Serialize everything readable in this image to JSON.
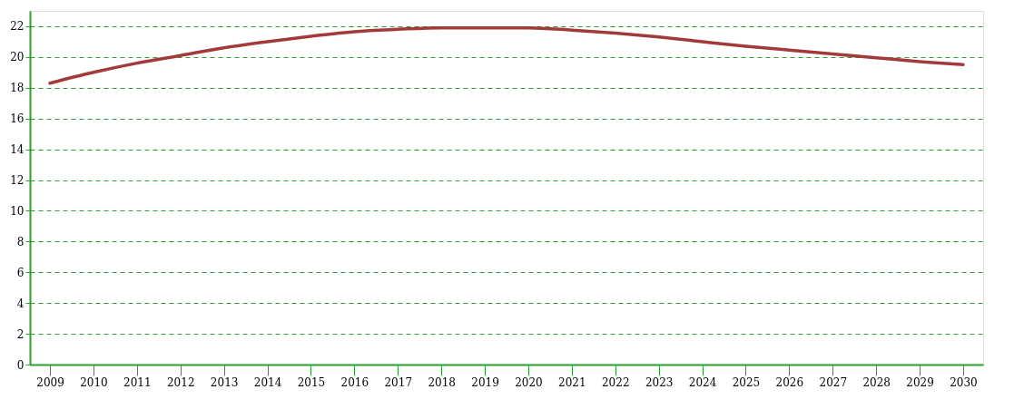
{
  "chart_data": {
    "type": "line",
    "categories": [
      "2009",
      "2010",
      "2011",
      "2012",
      "2013",
      "2014",
      "2015",
      "2016",
      "2017",
      "2018",
      "2019",
      "2020",
      "2021",
      "2022",
      "2023",
      "2024",
      "2025",
      "2026",
      "2027",
      "2028",
      "2029",
      "2030"
    ],
    "series": [
      {
        "color": "#a33a3a",
        "values": [
          18.3,
          19.0,
          19.6,
          20.1,
          20.6,
          21.0,
          21.35,
          21.65,
          21.8,
          21.9,
          21.9,
          21.9,
          21.75,
          21.55,
          21.3,
          21.0,
          20.7,
          20.45,
          20.2,
          19.95,
          19.7,
          19.5
        ]
      }
    ],
    "ylim": [
      0,
      23
    ],
    "yticks": [
      0,
      2,
      4,
      6,
      8,
      10,
      12,
      14,
      16,
      18,
      20,
      22
    ],
    "grid": "y",
    "legend": false,
    "marker": "none",
    "line_style": "solid"
  }
}
